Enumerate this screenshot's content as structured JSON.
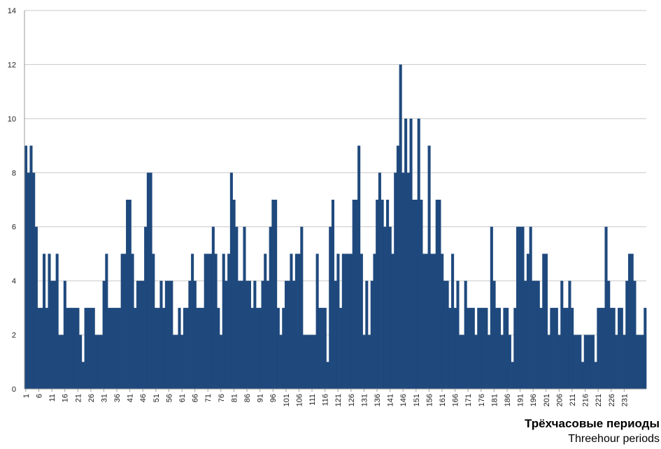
{
  "chart_data": {
    "type": "bar",
    "xlabel": "Трёхчасовые периоды",
    "xlabel_secondary": "Threehour periods",
    "ylim": [
      0,
      14
    ],
    "yticks": [
      0,
      2,
      4,
      6,
      8,
      10,
      12,
      14
    ],
    "grid": true,
    "bar_color": "#1f497d",
    "xtick_labels": [
      "1",
      "6",
      "11",
      "16",
      "21",
      "26",
      "31",
      "36",
      "41",
      "46",
      "51",
      "56",
      "61",
      "66",
      "71",
      "76",
      "81",
      "86",
      "91",
      "96",
      "101",
      "106",
      "111",
      "116",
      "121",
      "126",
      "131",
      "136",
      "141",
      "146",
      "151",
      "156",
      "161",
      "166",
      "171",
      "176",
      "181",
      "186",
      "191",
      "196",
      "201",
      "206",
      "211",
      "216",
      "221",
      "226",
      "231"
    ],
    "xtick_values": [
      1,
      6,
      11,
      16,
      21,
      26,
      31,
      36,
      41,
      46,
      51,
      56,
      61,
      66,
      71,
      76,
      81,
      86,
      91,
      96,
      101,
      106,
      111,
      116,
      121,
      126,
      131,
      136,
      141,
      146,
      151,
      156,
      161,
      166,
      171,
      176,
      181,
      186,
      191,
      196,
      201,
      206,
      211,
      216,
      221,
      226,
      231
    ],
    "values": [
      9,
      8,
      9,
      8,
      6,
      3,
      3,
      5,
      3,
      5,
      4,
      4,
      5,
      2,
      2,
      4,
      3,
      3,
      3,
      3,
      3,
      2,
      1,
      3,
      3,
      3,
      3,
      2,
      2,
      2,
      4,
      5,
      3,
      3,
      3,
      3,
      3,
      5,
      5,
      7,
      7,
      5,
      3,
      4,
      4,
      4,
      6,
      8,
      8,
      5,
      3,
      3,
      4,
      3,
      4,
      4,
      4,
      2,
      2,
      3,
      2,
      3,
      3,
      4,
      5,
      4,
      3,
      3,
      3,
      5,
      5,
      5,
      6,
      5,
      3,
      2,
      5,
      4,
      5,
      8,
      7,
      6,
      4,
      4,
      6,
      4,
      4,
      3,
      4,
      3,
      3,
      4,
      5,
      4,
      6,
      7,
      7,
      3,
      2,
      3,
      4,
      4,
      5,
      4,
      5,
      5,
      6,
      2,
      2,
      2,
      2,
      2,
      5,
      3,
      3,
      3,
      1,
      6,
      7,
      4,
      5,
      3,
      5,
      5,
      5,
      5,
      7,
      7,
      9,
      5,
      2,
      4,
      2,
      4,
      5,
      7,
      8,
      7,
      6,
      7,
      6,
      5,
      8,
      9,
      12,
      8,
      10,
      8,
      10,
      7,
      7,
      10,
      7,
      5,
      5,
      9,
      5,
      5,
      7,
      7,
      5,
      4,
      4,
      3,
      5,
      3,
      4,
      2,
      2,
      4,
      3,
      3,
      3,
      2,
      3,
      3,
      3,
      3,
      2,
      6,
      4,
      3,
      3,
      2,
      3,
      3,
      2,
      1,
      3,
      6,
      6,
      6,
      4,
      5,
      6,
      4,
      4,
      4,
      3,
      5,
      5,
      2,
      3,
      3,
      3,
      2,
      4,
      3,
      3,
      4,
      3,
      2,
      2,
      2,
      1,
      2,
      2,
      2,
      2,
      1,
      3,
      3,
      3,
      6,
      4,
      3,
      3,
      2,
      3,
      3,
      2,
      4,
      5,
      5,
      4,
      2,
      2,
      2,
      3
    ]
  }
}
